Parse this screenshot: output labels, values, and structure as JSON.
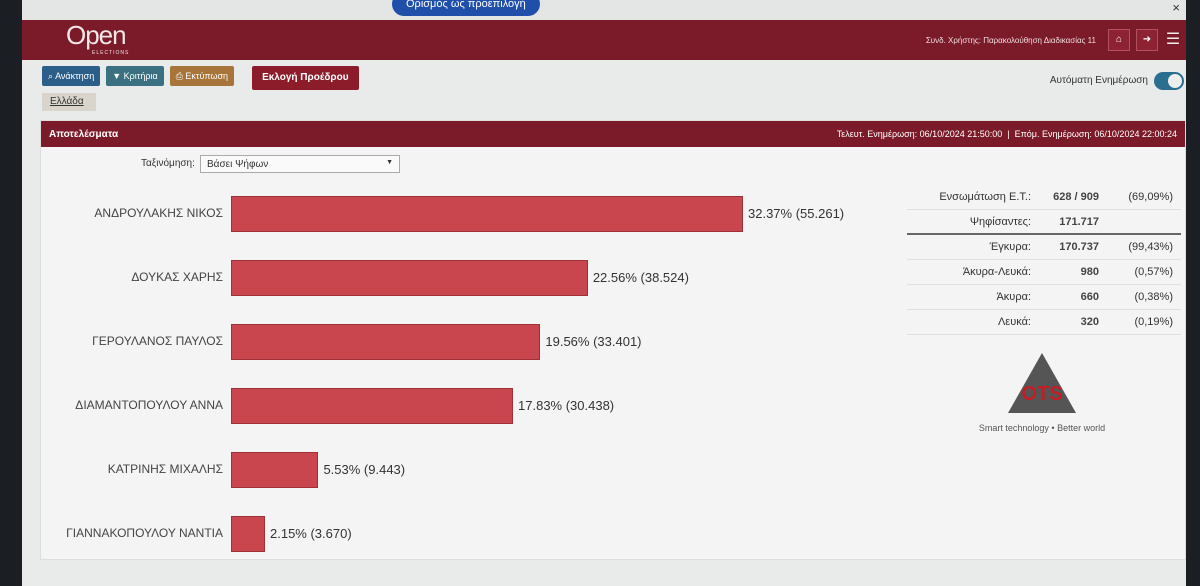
{
  "browser": {
    "default_button": "Ορισμός ως προεπιλογή",
    "close": "×"
  },
  "header": {
    "logo": "Open",
    "logo_sub": "ELECTIONS",
    "user": "Συνδ. Χρήστης: Παρακολούθηση Διαδικασίας 11",
    "home_icon": "⌂",
    "logout_icon": "➜",
    "menu_icon": "☰"
  },
  "toolbar": {
    "search": "Ανάκτηση",
    "criteria": "Κριτήρια",
    "print": "Εκτύπωση",
    "election": "Εκλογή Προέδρου",
    "breadcrumb": "Ελλάδα",
    "auto_update": "Αυτόματη Ενημέρωση"
  },
  "results": {
    "title": "Αποτελέσματα",
    "updates": "Τελευτ. Ενημέρωση: 06/10/2024 21:50:00  |  Επόμ. Ενημέρωση: 06/10/2024 22:00:24",
    "sort_label": "Ταξινόμηση:",
    "sort_value": "Βάσει Ψήφων"
  },
  "chart_data": {
    "type": "bar",
    "orientation": "horizontal",
    "categories": [
      "ΑΝΔΡΟΥΛΑΚΗΣ ΝΙΚΟΣ",
      "ΔΟΥΚΑΣ ΧΑΡΗΣ",
      "ΓΕΡΟΥΛΑΝΟΣ ΠΑΥΛΟΣ",
      "ΔΙΑΜΑΝΤΟΠΟΥΛΟΥ ΑΝΝΑ",
      "ΚΑΤΡΙΝΗΣ ΜΙΧΑΛΗΣ",
      "ΓΙΑΝΝΑΚΟΠΟΥΛΟΥ ΝΑΝΤΙΑ"
    ],
    "values": [
      32.37,
      22.56,
      19.56,
      17.83,
      5.53,
      2.15
    ],
    "labels": [
      "32.37% (55.261)",
      "22.56% (38.524)",
      "19.56% (33.401)",
      "17.83% (30.438)",
      "5.53% (9.443)",
      "2.15% (3.670)"
    ],
    "color": "#c9464f"
  },
  "stats": [
    {
      "label": "Ενσωμάτωση Ε.Τ.:",
      "value": "628 / 909",
      "pct": "(69,09%)"
    },
    {
      "label": "Ψηφίσαντες:",
      "value": "171.717",
      "pct": ""
    },
    {
      "label": "Έγκυρα:",
      "value": "170.737",
      "pct": "(99,43%)"
    },
    {
      "label": "Άκυρα-Λευκά:",
      "value": "980",
      "pct": "(0,57%)"
    },
    {
      "label": "Άκυρα:",
      "value": "660",
      "pct": "(0,38%)"
    },
    {
      "label": "Λευκά:",
      "value": "320",
      "pct": "(0,19%)"
    }
  ],
  "branding": {
    "logo": "OTS",
    "tagline": "Smart technology • Better world"
  }
}
